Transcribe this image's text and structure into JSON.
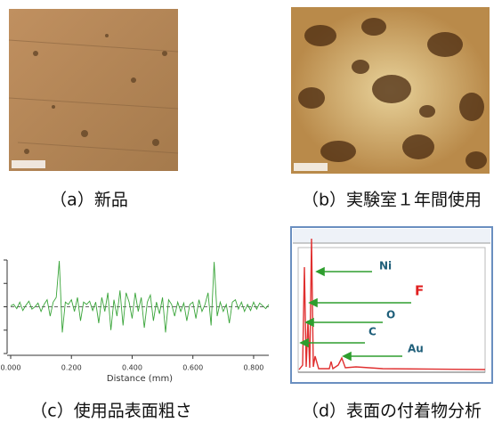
{
  "panels": {
    "a": {
      "caption": "（a）新品"
    },
    "b": {
      "caption": "（b）実験室１年間使用"
    },
    "c": {
      "caption": "（c）使用品表面粗さ"
    },
    "d": {
      "caption": "（d）表面の付着物分析",
      "labels": [
        "Ni",
        "F",
        "O",
        "C",
        "Au"
      ]
    }
  },
  "chart_data": {
    "type": "line",
    "xlabel": "Distance (mm)",
    "x": [
      0,
      0.01,
      0.02,
      0.03,
      0.04,
      0.05,
      0.06,
      0.07,
      0.08,
      0.09,
      0.1,
      0.11,
      0.12,
      0.13,
      0.14,
      0.15,
      0.16,
      0.17,
      0.18,
      0.19,
      0.2,
      0.21,
      0.22,
      0.23,
      0.24,
      0.25,
      0.26,
      0.27,
      0.28,
      0.29,
      0.3,
      0.31,
      0.32,
      0.33,
      0.34,
      0.35,
      0.36,
      0.37,
      0.38,
      0.39,
      0.4,
      0.41,
      0.42,
      0.43,
      0.44,
      0.45,
      0.46,
      0.47,
      0.48,
      0.49,
      0.5,
      0.51,
      0.52,
      0.53,
      0.54,
      0.55,
      0.56,
      0.57,
      0.58,
      0.59,
      0.6,
      0.61,
      0.62,
      0.63,
      0.64,
      0.65,
      0.66,
      0.67,
      0.68,
      0.69,
      0.7,
      0.71,
      0.72,
      0.73,
      0.74,
      0.75,
      0.76,
      0.77,
      0.78,
      0.79,
      0.8,
      0.81,
      0.82,
      0.83,
      0.84,
      0.85
    ],
    "series": [
      {
        "color": "#3aa53a",
        "values": [
          0.02,
          0.05,
          -0.04,
          0.1,
          -0.08,
          0.03,
          0.12,
          -0.05,
          0.0,
          0.08,
          -0.1,
          0.05,
          0.15,
          -0.2,
          0.1,
          0.2,
          0.98,
          -0.55,
          0.1,
          0.05,
          0.15,
          -0.1,
          0.2,
          -0.3,
          0.1,
          0.05,
          0.12,
          -0.08,
          0.1,
          -0.35,
          0.2,
          -0.1,
          0.3,
          -0.5,
          0.15,
          -0.2,
          0.35,
          -0.4,
          0.3,
          0.1,
          -0.25,
          0.3,
          -0.1,
          0.2,
          -0.45,
          0.1,
          0.25,
          -0.3,
          0.1,
          -0.15,
          0.2,
          -0.55,
          0.15,
          0.05,
          -0.2,
          0.1,
          -0.1,
          0.08,
          -0.3,
          0.05,
          0.1,
          -0.25,
          0.15,
          -0.1,
          0.05,
          0.3,
          -0.4,
          0.96,
          -0.2,
          0.1,
          -0.1,
          0.05,
          -0.35,
          0.1,
          0.15,
          -0.05,
          0.1,
          -0.1,
          0.05,
          -0.08,
          0.1,
          -0.05,
          0.08,
          0.02,
          -0.04,
          0.05
        ]
      }
    ],
    "xlim": [
      0,
      0.85
    ],
    "ylim": [
      -1,
      1
    ],
    "xticks": [
      {
        "value": 0,
        "label": "0.000"
      },
      {
        "value": 0.2,
        "label": "0.200"
      },
      {
        "value": 0.4,
        "label": "0.400"
      },
      {
        "value": 0.6,
        "label": "0.600"
      },
      {
        "value": 0.8,
        "label": "0.800"
      }
    ],
    "yticks": [
      -1,
      -0.5,
      0,
      0.5,
      1
    ]
  }
}
